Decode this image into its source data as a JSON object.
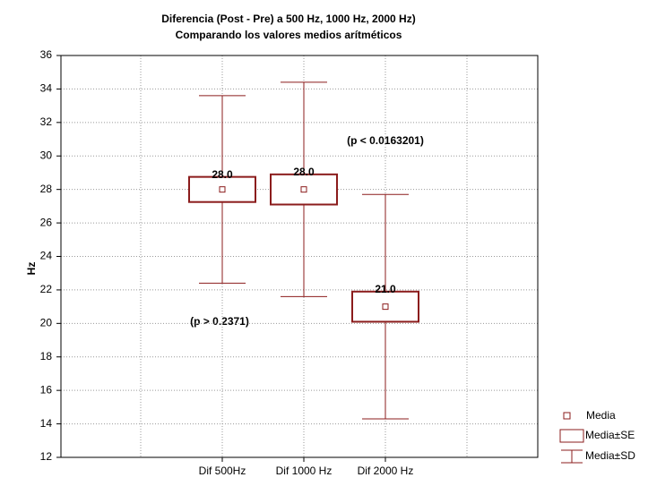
{
  "chart_data": {
    "type": "box",
    "title": "Diferencia (Post - Pre) a 500 Hz, 1000 Hz, 2000 Hz)",
    "subtitle": "Comparando los valores medios arítméticos",
    "ylabel": "Hz",
    "categories": [
      "Dif 500Hz",
      "Dif 1000 Hz",
      "Dif 2000 Hz"
    ],
    "mean": [
      28.0,
      28.0,
      21.0
    ],
    "value_labels": [
      "28.0",
      "28.0",
      "21.0"
    ],
    "se": [
      0.75,
      0.9,
      0.9
    ],
    "sd": [
      5.6,
      6.4,
      6.7
    ],
    "color": "#8b1c1c",
    "ylim": [
      12,
      36
    ],
    "yticks": [
      12,
      14,
      16,
      18,
      20,
      22,
      24,
      26,
      28,
      30,
      32,
      34,
      36
    ],
    "grid": true,
    "legend": {
      "position": "lower right",
      "entries": [
        "Media",
        "Media±SE",
        "Media±SD"
      ]
    },
    "annotations": [
      "(p > 0.2371)",
      "(p < 0.0163201)"
    ]
  }
}
